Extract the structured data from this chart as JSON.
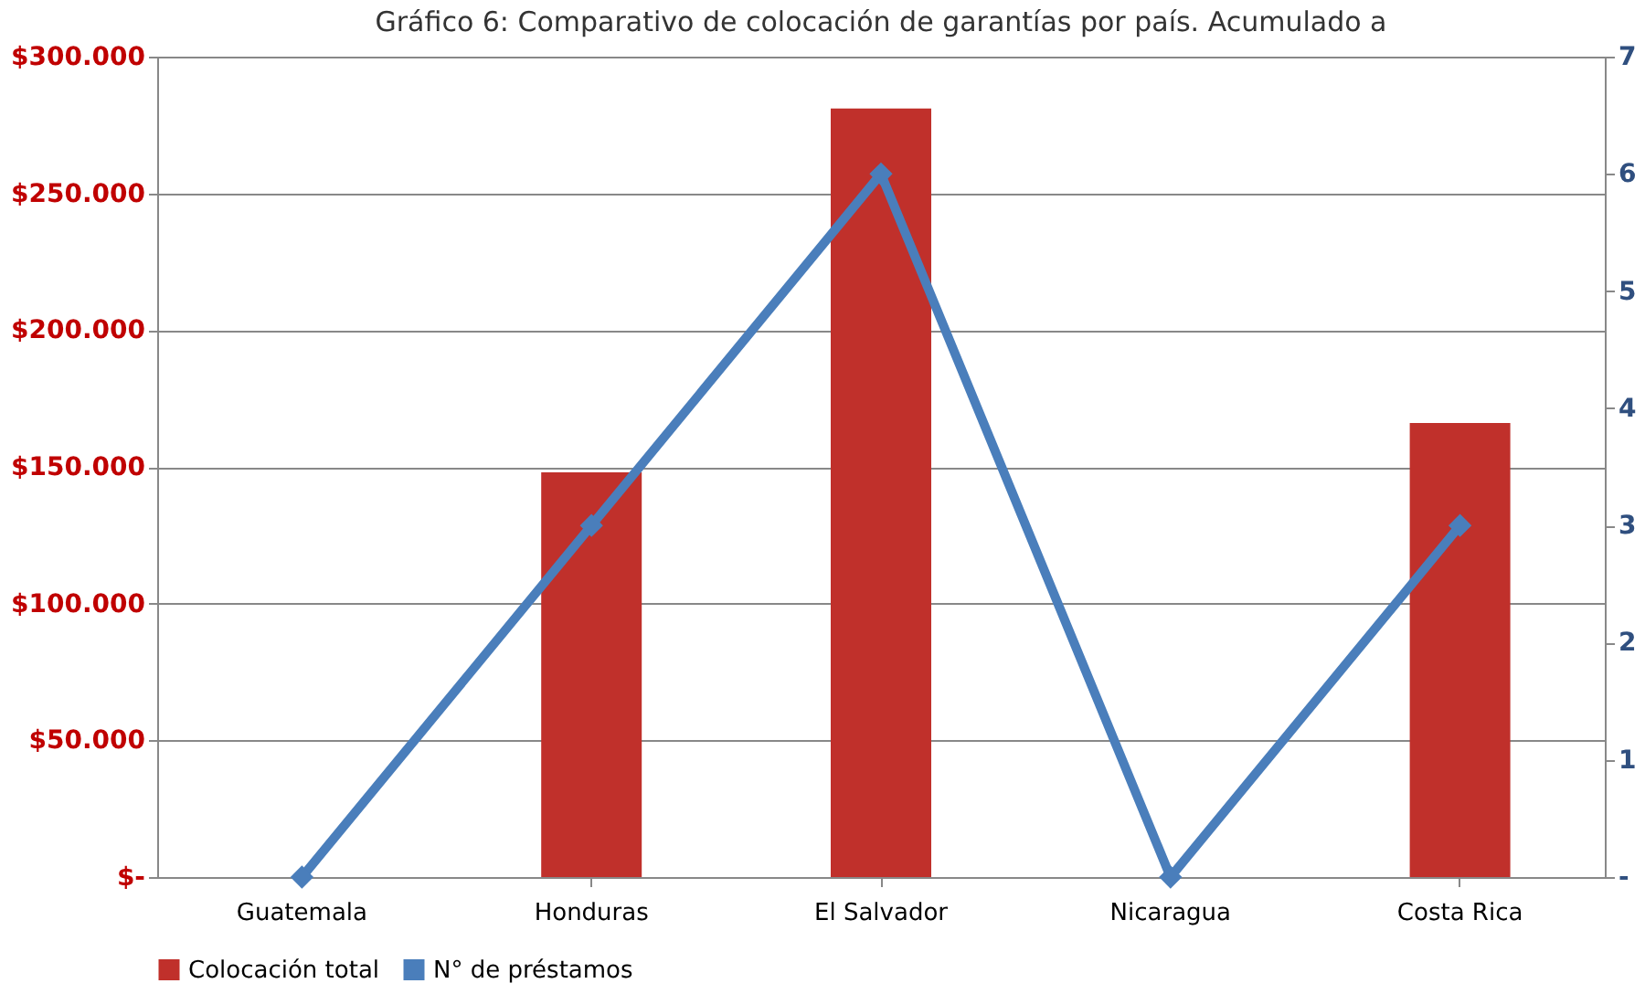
{
  "chart_data": {
    "type": "bar",
    "title": "Gráfico 6: Comparativo de colocación de garantías por país. Acumulado a",
    "categories": [
      "Guatemala",
      "Honduras",
      "El Salvador",
      "Nicaragua",
      "Costa Rica"
    ],
    "series": [
      {
        "name": "Colocación total",
        "color": "#c0302b",
        "values": [
          0,
          148000,
          281000,
          0,
          166000
        ]
      },
      {
        "name": "N° de préstamos",
        "type": "line",
        "axis": "y2",
        "color": "#4a7ebb",
        "marker": "diamond",
        "values": [
          0,
          3,
          6,
          0,
          3
        ]
      }
    ],
    "ylim": [
      0,
      300000
    ],
    "yticks": [
      {
        "value": 0,
        "label": "$-"
      },
      {
        "value": 50000,
        "label": "$50.000"
      },
      {
        "value": 100000,
        "label": "$100.000"
      },
      {
        "value": 150000,
        "label": "$150.000"
      },
      {
        "value": 200000,
        "label": "$200.000"
      },
      {
        "value": 250000,
        "label": "$250.000"
      },
      {
        "value": 300000,
        "label": "$300.000"
      }
    ],
    "y2lim": [
      0,
      7
    ],
    "y2ticks": [
      {
        "value": 0,
        "label": "-"
      },
      1,
      2,
      3,
      4,
      5,
      6,
      7
    ],
    "grid": "y",
    "legend": "bottom"
  }
}
